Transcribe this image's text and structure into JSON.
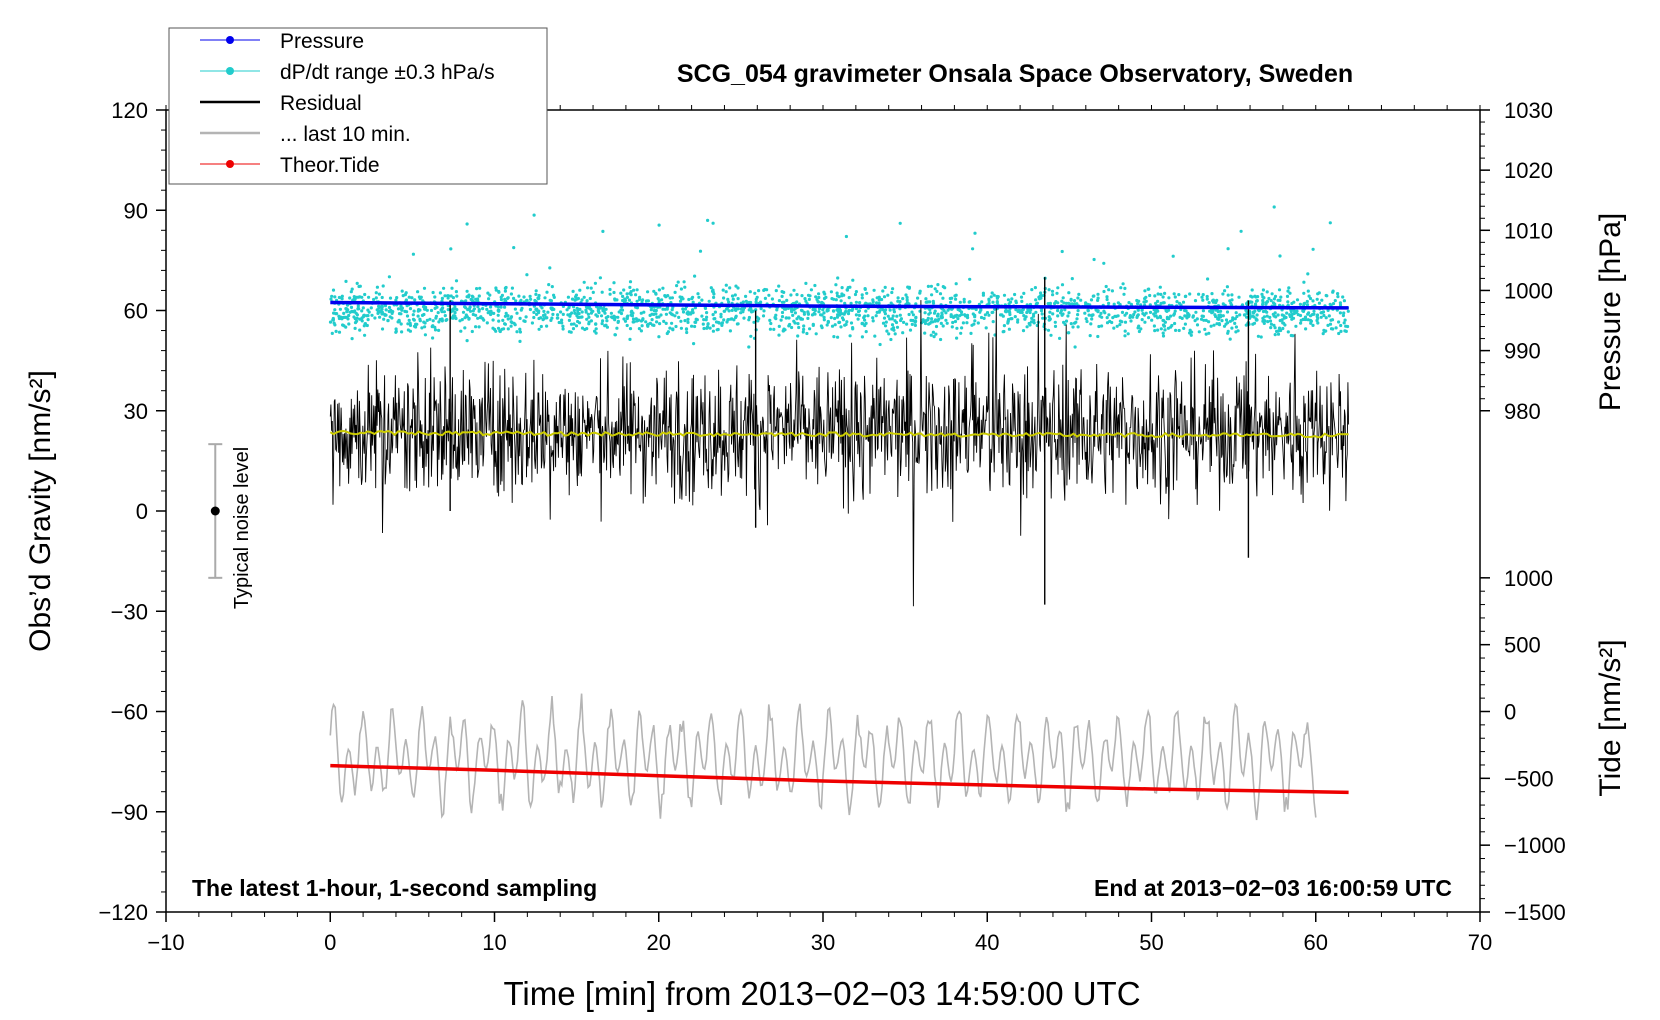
{
  "chart_data": {
    "type": "line",
    "title": "SCG_054 gravimeter Onsala Space Observatory, Sweden",
    "xlabel": "Time [min] from 2013−02−03 14:59:00 UTC",
    "ylabel_left": "Obs’d Gravity [nm/s²]",
    "ylabel_right_top": "Pressure [hPa]",
    "ylabel_right_bottom": "Tide [nm/s²]",
    "xlim": [
      -10,
      70
    ],
    "ylim": [
      -120,
      120
    ],
    "pressure_axis_range": [
      980,
      1030
    ],
    "tide_axis_range": [
      -1500,
      1000
    ],
    "x_ticks": [
      "−10",
      "0",
      "10",
      "20",
      "30",
      "40",
      "50",
      "60",
      "70"
    ],
    "y_ticks": [
      "−120",
      "−90",
      "−60",
      "−30",
      "0",
      "30",
      "60",
      "90",
      "120"
    ],
    "pressure_ticks": [
      "980",
      "990",
      "1000",
      "1010",
      "1020",
      "1030"
    ],
    "tide_ticks": [
      "−1500",
      "−1000",
      "−500",
      "0",
      "500",
      "1000"
    ],
    "annotation_left": "The latest 1-hour, 1-second sampling",
    "annotation_right": "End at 2013−02−03 16:00:59 UTC",
    "noise_label": "Typical noise level",
    "noise_bar": {
      "x": -7,
      "center": 0,
      "half_range": 20
    },
    "legend": [
      {
        "label": "Pressure",
        "color": "#0000ee",
        "style": "line-dot"
      },
      {
        "label": "dP/dt range ±0.3 hPa/s",
        "color": "#22cccc",
        "style": "line-dot"
      },
      {
        "label": "Residual",
        "color": "#000000",
        "style": "line"
      },
      {
        "label": "... last 10 min.",
        "color": "#b4b4b4",
        "style": "line"
      },
      {
        "label": "Theor.Tide",
        "color": "#ee0000",
        "style": "line-dot"
      }
    ],
    "series": [
      {
        "name": "Pressure",
        "axis": "pressure",
        "color": "#0000ee",
        "x": [
          0,
          10,
          20,
          30,
          40,
          50,
          62
        ],
        "values": [
          998.0,
          997.8,
          997.6,
          997.4,
          997.3,
          997.2,
          997.1
        ]
      },
      {
        "name": "dP/dt",
        "axis": "left",
        "color": "#22cccc",
        "x_range": [
          0,
          62
        ],
        "center": 60,
        "spread": 3.5
      },
      {
        "name": "Residual",
        "axis": "left",
        "color": "#000000",
        "x_range": [
          0,
          62
        ],
        "center": 24,
        "spread": 10
      },
      {
        "name": "Residual running mean",
        "axis": "left",
        "color": "#cccc00",
        "x": [
          0,
          10,
          20,
          30,
          40,
          50,
          62
        ],
        "values": [
          23.5,
          23.2,
          23.0,
          23.0,
          22.8,
          22.7,
          22.6
        ]
      },
      {
        "name": "... last 10 min.",
        "axis": "left",
        "color": "#b4b4b4",
        "x_range": [
          0,
          60
        ],
        "center": -74,
        "amplitude": 18
      },
      {
        "name": "Theor.Tide",
        "axis": "tide",
        "color": "#ee0000",
        "x": [
          0,
          10,
          20,
          30,
          40,
          50,
          62
        ],
        "values": [
          -405,
          -440,
          -480,
          -520,
          -550,
          -580,
          -605
        ]
      }
    ],
    "spikes": [
      {
        "x": 43.5,
        "min": -28,
        "max": 70
      },
      {
        "x": 7.3,
        "min": 0,
        "max": 63
      },
      {
        "x": 55.9,
        "min": -14,
        "max": 63
      },
      {
        "x": 25.9,
        "min": -5,
        "max": 60
      }
    ]
  }
}
